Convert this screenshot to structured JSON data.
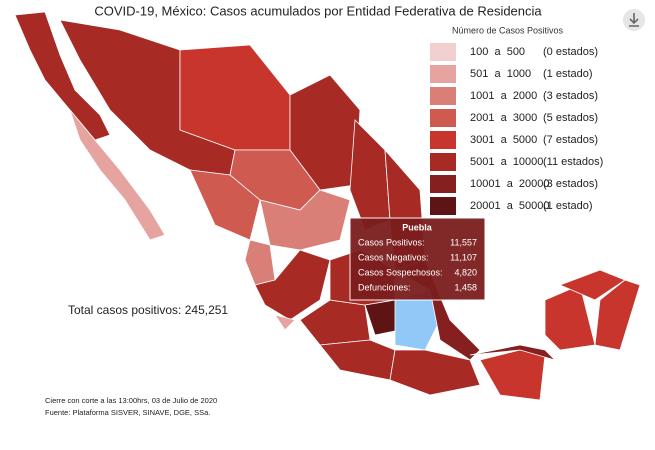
{
  "title": "COVID-19, México: Casos acumulados por Entidad Federativa de Residencia",
  "legend": {
    "title": "Número de Casos Positivos",
    "items": [
      {
        "range": "100  a  500",
        "count": "(0 estados)",
        "color": "#f2d0d0"
      },
      {
        "range": "501  a  1000",
        "count": "(1 estado)",
        "color": "#e6a4a0"
      },
      {
        "range": "1001  a  2000",
        "count": "(3 estados)",
        "color": "#da7f78"
      },
      {
        "range": "2001  a  3000",
        "count": "(5 estados)",
        "color": "#cf5a50"
      },
      {
        "range": "3001  a  5000",
        "count": "(7 estados)",
        "color": "#c8352c"
      },
      {
        "range": "5001  a  10000",
        "count": "(11 estados)",
        "color": "#a82a24"
      },
      {
        "range": "10001  a  20000",
        "count": "(3 estados)",
        "color": "#862020"
      },
      {
        "range": "20001  a  50000",
        "count": "(1 estado)",
        "color": "#5e1414"
      }
    ]
  },
  "total": "Total casos positivos: 245,251",
  "tooltip": {
    "state": "Puebla",
    "rows": [
      {
        "label": "Casos Positivos:",
        "value": "11,557"
      },
      {
        "label": "Casos Negativos:",
        "value": "11,107"
      },
      {
        "label": "Casos Sospechosos:",
        "value": "4,820"
      },
      {
        "label": "Defunciones:",
        "value": "1,458"
      }
    ]
  },
  "notes": [
    "Cierre con corte a las 13:00hrs, 03 de Julio de 2020",
    "Fuente: Plataforma SISVER, SINAVE, DGE, SSa."
  ]
}
